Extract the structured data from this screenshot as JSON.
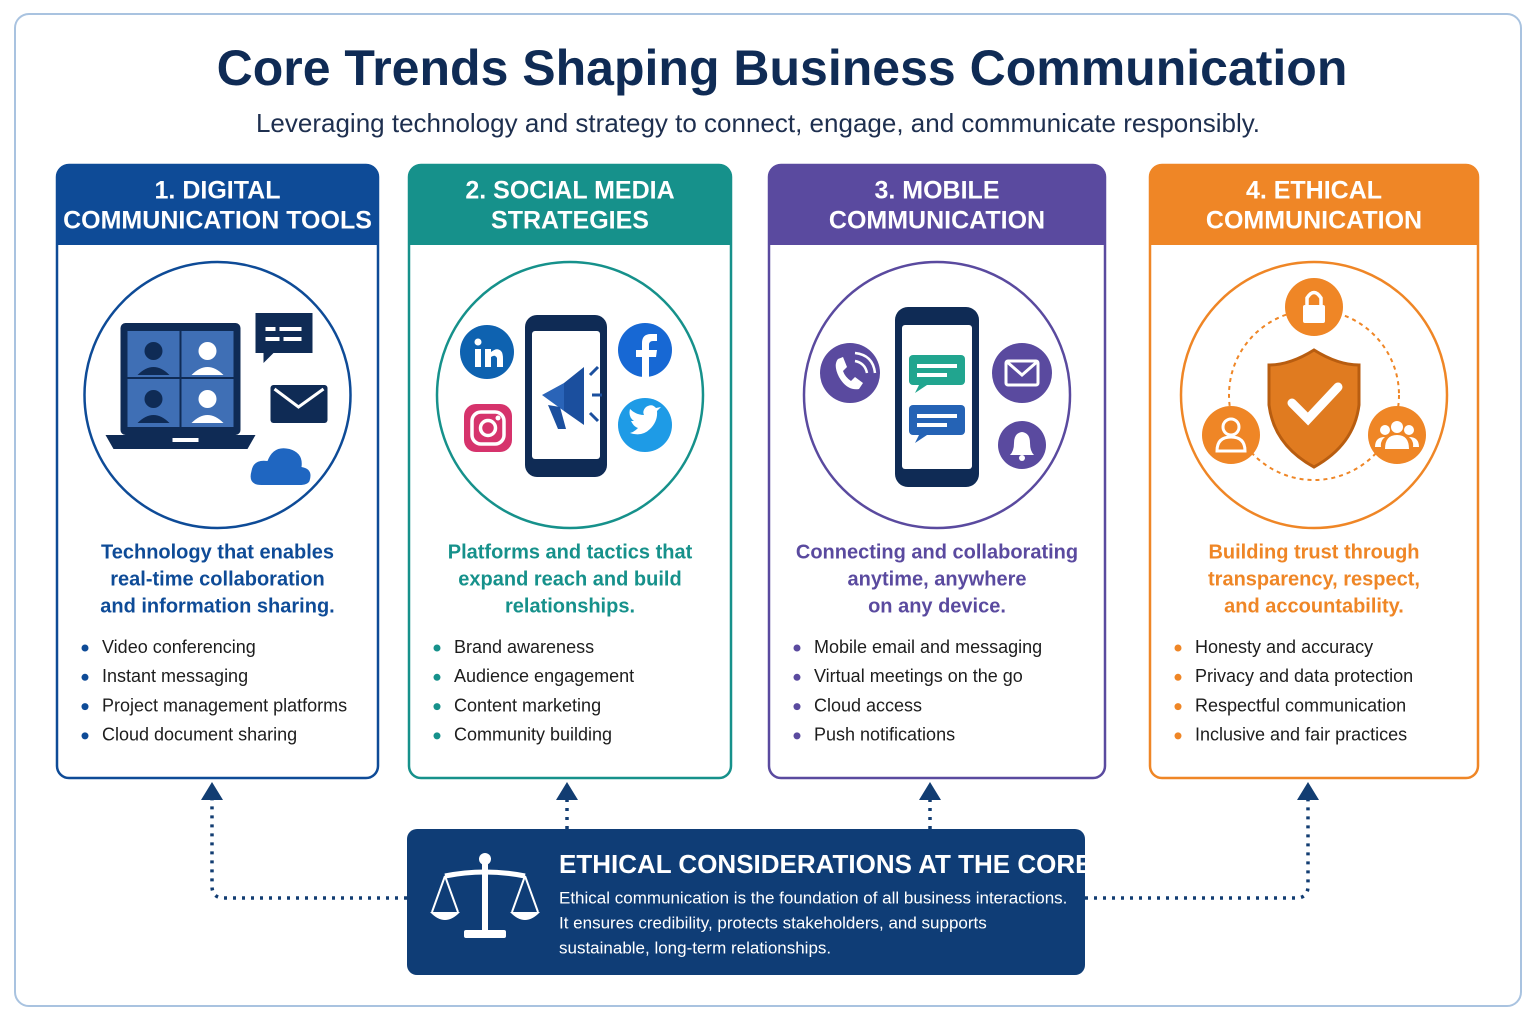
{
  "header": {
    "title": "Core Trends Shaping Business Communication",
    "subtitle": "Leveraging technology and strategy to connect, engage, and communicate responsibly."
  },
  "cards": [
    {
      "title_lines": [
        "1. DIGITAL",
        "COMMUNICATION TOOLS"
      ],
      "description_lines": [
        "Technology that enables",
        "real-time collaboration",
        "and information sharing."
      ],
      "bullets": [
        "Video conferencing",
        "Instant messaging",
        "Project management platforms",
        "Cloud document sharing"
      ]
    },
    {
      "title_lines": [
        "2. SOCIAL MEDIA",
        "STRATEGIES"
      ],
      "description_lines": [
        "Platforms and tactics that",
        "expand reach and build",
        "relationships."
      ],
      "bullets": [
        "Brand awareness",
        "Audience engagement",
        "Content marketing",
        "Community building"
      ]
    },
    {
      "title_lines": [
        "3. MOBILE",
        "COMMUNICATION"
      ],
      "description_lines": [
        "Connecting and collaborating",
        "anytime, anywhere",
        "on any device."
      ],
      "bullets": [
        "Mobile email and messaging",
        "Virtual meetings on the go",
        "Cloud access",
        "Push notifications"
      ]
    },
    {
      "title_lines": [
        "4. ETHICAL",
        "COMMUNICATION"
      ],
      "description_lines": [
        "Building trust through",
        "transparency, respect,",
        "and accountability."
      ],
      "bullets": [
        "Honesty and accuracy",
        "Privacy and data protection",
        "Respectful communication",
        "Inclusive and fair practices"
      ]
    }
  ],
  "core": {
    "title": "ETHICAL CONSIDERATIONS AT THE CORE",
    "text_lines": [
      "Ethical communication is the foundation of all business interactions.",
      "It ensures credibility, protects stakeholders, and supports",
      "sustainable, long-term relationships."
    ]
  }
}
